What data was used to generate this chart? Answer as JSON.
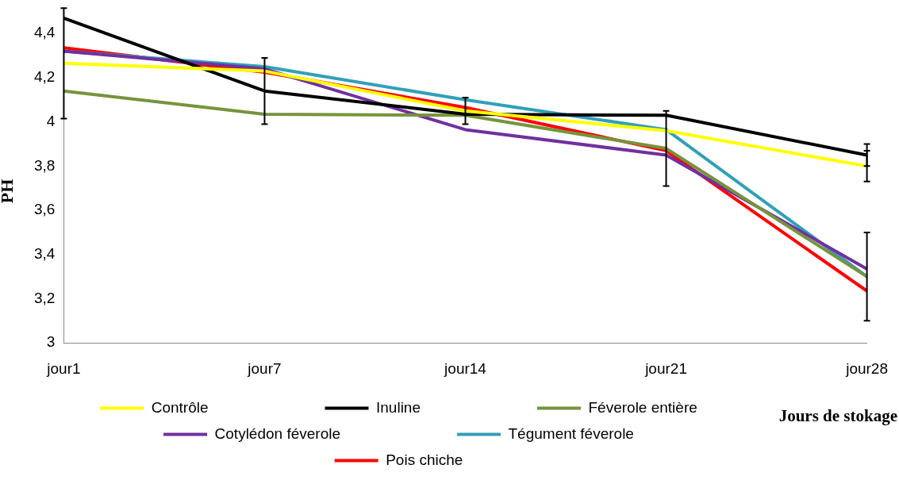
{
  "chart_data": {
    "type": "line",
    "xlabel": "Jours de stokage",
    "ylabel": "PH",
    "categories": [
      "jour1",
      "jour7",
      "jour14",
      "jour21",
      "jour28"
    ],
    "series": [
      {
        "name": "Contrôle",
        "color": "#ffff00",
        "values": [
          4.265,
          4.23,
          4.05,
          3.96,
          3.8
        ],
        "errors": [
          0.25,
          null,
          0.06,
          null,
          0.07
        ]
      },
      {
        "name": "Inuline",
        "color": "#000000",
        "values": [
          4.47,
          4.14,
          4.035,
          4.03,
          3.85
        ],
        "errors": [
          null,
          0.15,
          null,
          null,
          0.05
        ]
      },
      {
        "name": "Féverole entière",
        "color": "#77933c",
        "values": [
          4.14,
          4.035,
          4.03,
          3.88,
          3.3
        ],
        "errors": [
          null,
          null,
          null,
          0.17,
          null
        ]
      },
      {
        "name": "Cotylédon féverole",
        "color": "#7030a0",
        "values": [
          4.32,
          4.24,
          3.965,
          3.85,
          3.335
        ],
        "errors": [
          null,
          null,
          null,
          null,
          null
        ]
      },
      {
        "name": "Tégument féverole",
        "color": "#31a0b8",
        "values": [
          4.32,
          4.25,
          4.1,
          3.965,
          3.3
        ],
        "errors": [
          null,
          null,
          null,
          null,
          0.2
        ]
      },
      {
        "name": "Pois chiche",
        "color": "#ff0000",
        "values": [
          4.335,
          4.225,
          4.065,
          3.87,
          3.235
        ],
        "errors": [
          null,
          null,
          null,
          null,
          null
        ]
      }
    ],
    "ylim": [
      3,
      4.5
    ],
    "yticks": [
      3,
      {
        "value": 3.2,
        "label": "3,2"
      },
      {
        "value": 3.4,
        "label": "3,4"
      },
      {
        "value": 3.6,
        "label": "3,6"
      },
      {
        "value": 3.8,
        "label": "3,8"
      },
      4,
      {
        "value": 4.2,
        "label": "4,2"
      },
      {
        "value": 4.4,
        "label": "4,4"
      }
    ],
    "grid": false,
    "legend": "bottom",
    "marker": "none",
    "line_style": "solid"
  }
}
